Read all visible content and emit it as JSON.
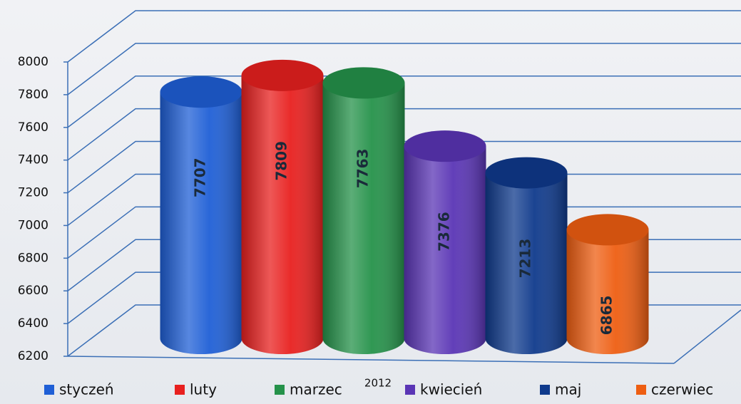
{
  "chart_data": {
    "type": "bar3d",
    "categories": [
      "2012"
    ],
    "series": [
      {
        "name": "styczeń",
        "color": "#1f5fd6",
        "values": [
          7707
        ]
      },
      {
        "name": "luty",
        "color": "#e8201f",
        "values": [
          7809
        ]
      },
      {
        "name": "marzec",
        "color": "#25924a",
        "values": [
          7763
        ]
      },
      {
        "name": "kwiecień",
        "color": "#5a35b5",
        "values": [
          7376
        ]
      },
      {
        "name": "maj",
        "color": "#0f3a8c",
        "values": [
          7213
        ]
      },
      {
        "name": "czerwiec",
        "color": "#ee5e12",
        "values": [
          6865
        ]
      }
    ],
    "ylim": [
      6200,
      8000
    ],
    "yticks": [
      6200,
      6400,
      6600,
      6800,
      7000,
      7200,
      7400,
      7600,
      7800,
      8000
    ],
    "grid": true,
    "legend": "bottom"
  }
}
